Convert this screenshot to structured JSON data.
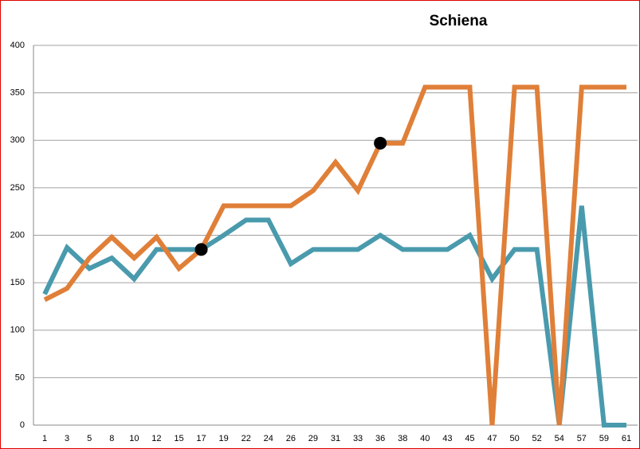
{
  "chart_data": {
    "type": "line",
    "title": "Schiena",
    "categories": [
      "1",
      "3",
      "5",
      "8",
      "10",
      "12",
      "15",
      "17",
      "19",
      "22",
      "24",
      "26",
      "29",
      "31",
      "33",
      "36",
      "38",
      "40",
      "43",
      "45",
      "47",
      "50",
      "52",
      "54",
      "57",
      "59",
      "61"
    ],
    "series": [
      {
        "color": "#4a9aad",
        "values": [
          138,
          187,
          165,
          176,
          154,
          185,
          185,
          185,
          200,
          216,
          216,
          170,
          185,
          185,
          185,
          200,
          185,
          185,
          185,
          200,
          154,
          185,
          185,
          0,
          231,
          0,
          0
        ]
      },
      {
        "color": "#e07f38",
        "values": [
          132,
          144,
          176,
          198,
          176,
          198,
          165,
          185,
          231,
          231,
          231,
          231,
          247,
          277,
          247,
          297,
          297,
          356,
          356,
          356,
          0,
          356,
          356,
          0,
          356,
          356,
          356
        ]
      }
    ],
    "highlights": [
      {
        "category": "17",
        "value": 185,
        "color": "#000000"
      },
      {
        "category": "36",
        "value": 297,
        "color": "#000000"
      }
    ],
    "ylim": [
      0,
      400
    ],
    "yticks": [
      0,
      50,
      100,
      150,
      200,
      250,
      300,
      350,
      400
    ],
    "grid": true
  }
}
